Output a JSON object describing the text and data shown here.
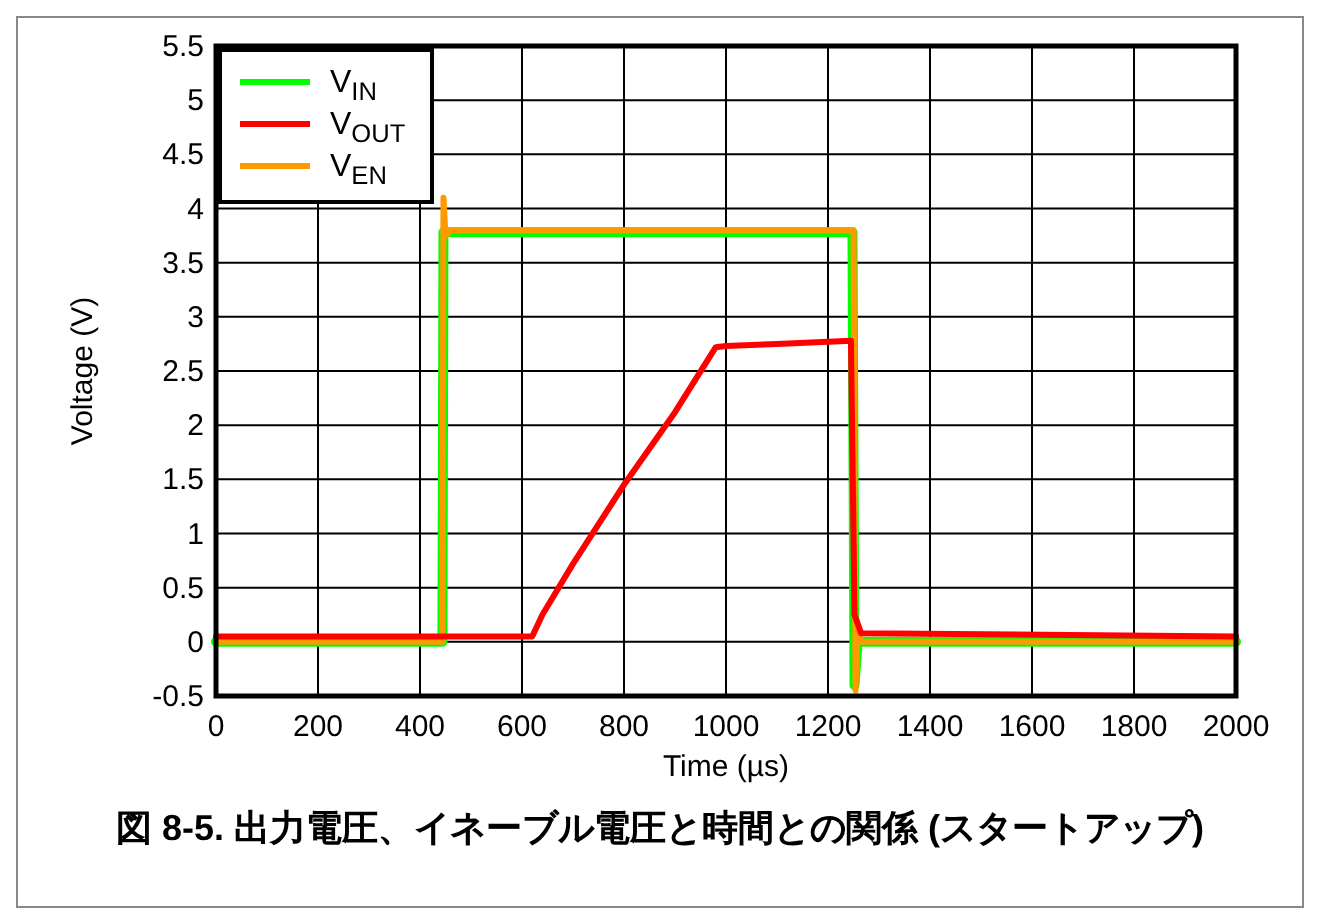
{
  "chart_data": {
    "type": "line",
    "title": "図 8-5. 出力電圧、イネーブル電圧と時間との関係 (スタートアップ)",
    "xlabel": "Time (µs)",
    "ylabel": "Voltage (V)",
    "xlim": [
      0,
      2000
    ],
    "xticks": [
      0,
      200,
      400,
      600,
      800,
      1000,
      1200,
      1400,
      1600,
      1800,
      2000
    ],
    "ylim": [
      -0.5,
      5.5
    ],
    "yticks": [
      -0.5,
      0,
      0.5,
      1,
      1.5,
      2,
      2.5,
      3,
      3.5,
      4,
      4.5,
      5,
      5.5
    ],
    "grid": true,
    "legend": "top left",
    "marker": "none",
    "line_style": "solid",
    "series": [
      {
        "name": "V$_{IN}$",
        "color": "#00ff00",
        "x": [
          0,
          444,
          446,
          450,
          1248,
          1252,
          1258,
          2000
        ],
        "values": [
          0,
          0,
          3.78,
          3.78,
          3.78,
          -0.4,
          0,
          0
        ]
      },
      {
        "name": "V$_{OUT}$",
        "color": "#ff0000",
        "x": [
          0,
          620,
          640,
          700,
          800,
          900,
          980,
          1000,
          1100,
          1245,
          1252,
          1265,
          2000
        ],
        "values": [
          0.05,
          0.05,
          0.25,
          0.72,
          1.45,
          2.12,
          2.72,
          2.73,
          2.75,
          2.78,
          0.25,
          0.08,
          0.05
        ]
      },
      {
        "name": "V$_{EN}$",
        "color": "#ff9900",
        "x": [
          0,
          444,
          446,
          450,
          460,
          1250,
          1254,
          1258,
          1265,
          2000
        ],
        "values": [
          0,
          0,
          4.1,
          3.75,
          3.8,
          3.8,
          -0.45,
          0.1,
          0,
          0
        ]
      }
    ]
  }
}
